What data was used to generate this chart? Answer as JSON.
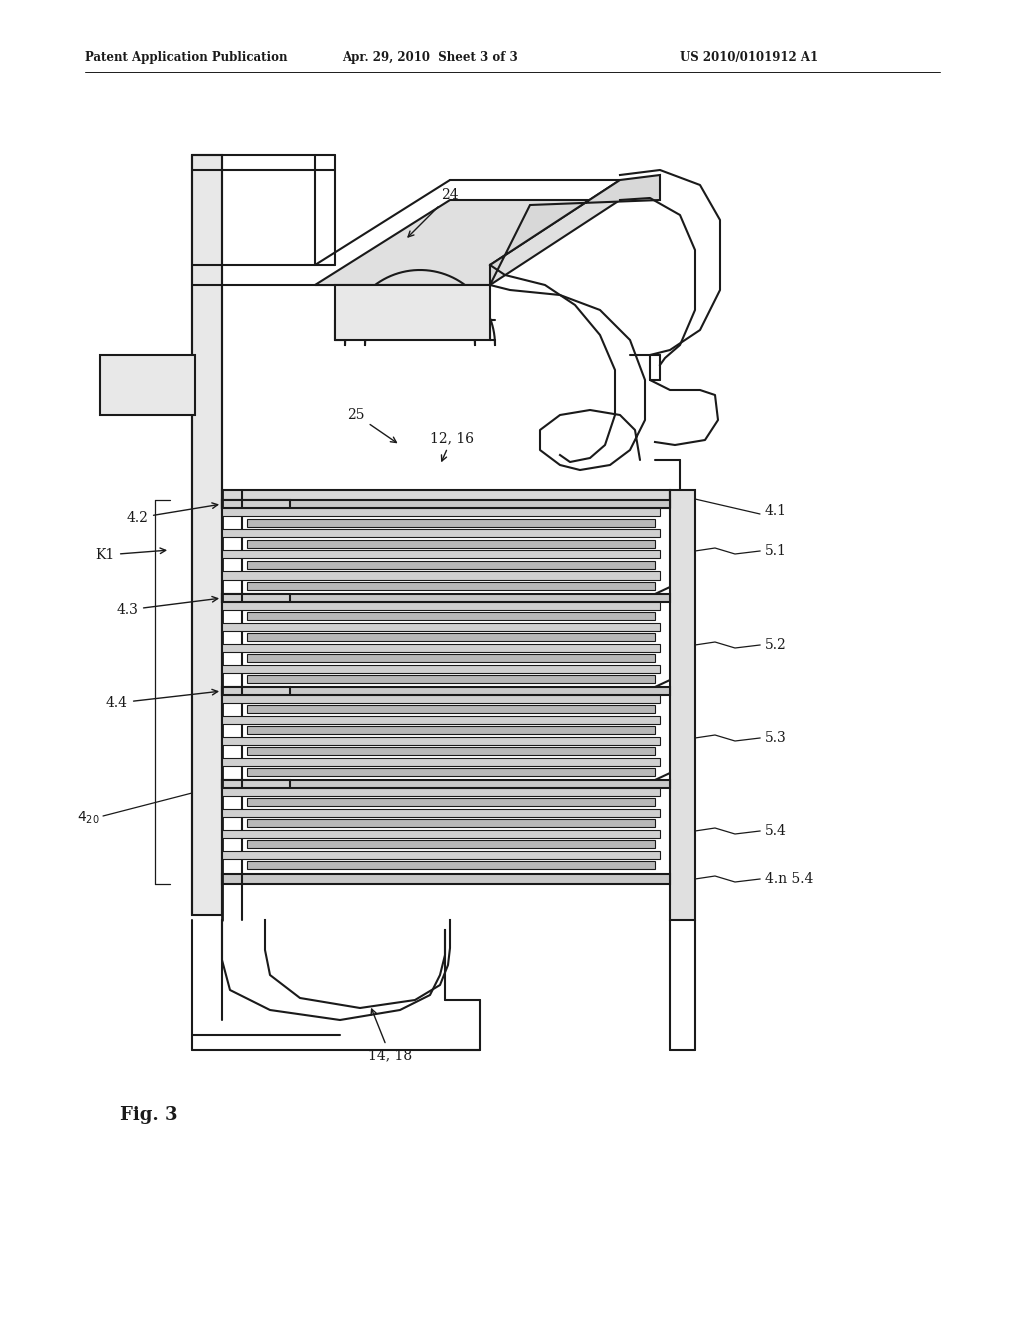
{
  "bg_color": "#ffffff",
  "lc": "#1a1a1a",
  "header_left": "Patent Application Publication",
  "header_center": "Apr. 29, 2010  Sheet 3 of 3",
  "header_right": "US 2010/0101912 A1",
  "fig_label": "Fig. 3"
}
